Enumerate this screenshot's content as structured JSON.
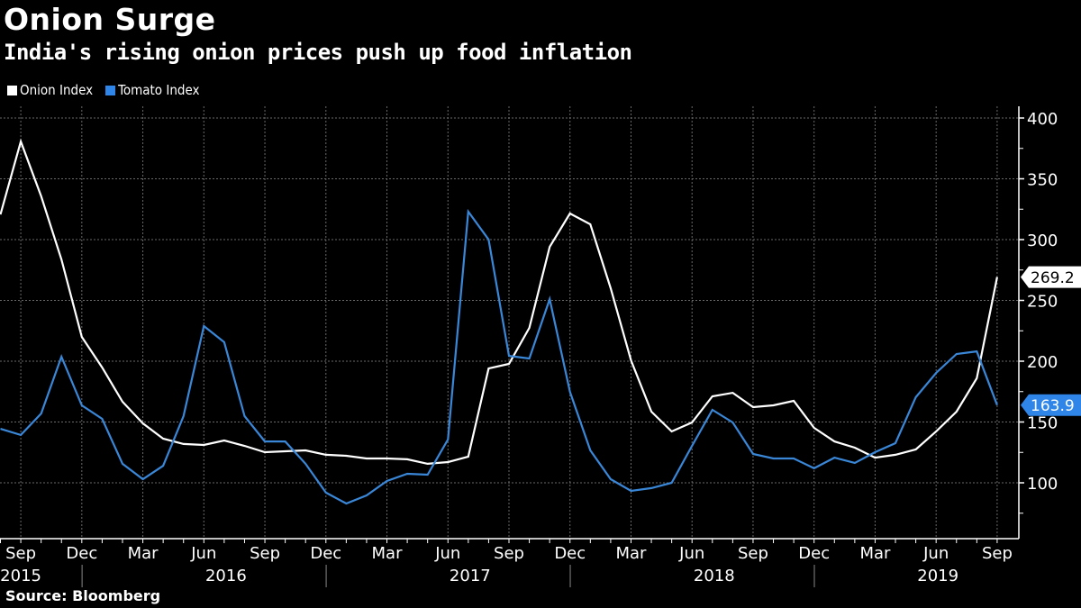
{
  "header": {
    "title": "Onion Surge",
    "subtitle": "India's rising onion prices push up food inflation"
  },
  "footer": {
    "source": "Source: Bloomberg"
  },
  "colors": {
    "background": "#000000",
    "onion": "#ffffff",
    "tomato": "#3a87d8",
    "grid": "#6a6a6a"
  },
  "chart_data": {
    "type": "line",
    "title": "Onion Surge",
    "subtitle": "India's rising onion prices push up food inflation",
    "xlabel": "",
    "ylabel": "",
    "ylim": [
      50,
      410
    ],
    "grid": true,
    "legend": "top-left",
    "y_ticks": [
      100,
      150,
      200,
      250,
      300,
      350,
      400
    ],
    "x": [
      "2015-08",
      "2015-09",
      "2015-10",
      "2015-11",
      "2015-12",
      "2016-01",
      "2016-02",
      "2016-03",
      "2016-04",
      "2016-05",
      "2016-06",
      "2016-07",
      "2016-08",
      "2016-09",
      "2016-10",
      "2016-11",
      "2016-12",
      "2017-01",
      "2017-02",
      "2017-03",
      "2017-04",
      "2017-05",
      "2017-06",
      "2017-07",
      "2017-08",
      "2017-09",
      "2017-10",
      "2017-11",
      "2017-12",
      "2018-01",
      "2018-02",
      "2018-03",
      "2018-04",
      "2018-05",
      "2018-06",
      "2018-07",
      "2018-08",
      "2018-09",
      "2018-10",
      "2018-11",
      "2018-12",
      "2019-01",
      "2019-02",
      "2019-03",
      "2019-04",
      "2019-05",
      "2019-06",
      "2019-07",
      "2019-08",
      "2019-09"
    ],
    "x_ticks": [
      {
        "label": "Sep",
        "index": 1
      },
      {
        "label": "Dec",
        "index": 4
      },
      {
        "label": "Mar",
        "index": 7
      },
      {
        "label": "Jun",
        "index": 10
      },
      {
        "label": "Sep",
        "index": 13
      },
      {
        "label": "Dec",
        "index": 16
      },
      {
        "label": "Mar",
        "index": 19
      },
      {
        "label": "Jun",
        "index": 22
      },
      {
        "label": "Sep",
        "index": 25
      },
      {
        "label": "Dec",
        "index": 28
      },
      {
        "label": "Mar",
        "index": 31
      },
      {
        "label": "Jun",
        "index": 34
      },
      {
        "label": "Sep",
        "index": 37
      },
      {
        "label": "Dec",
        "index": 40
      },
      {
        "label": "Mar",
        "index": 43
      },
      {
        "label": "Jun",
        "index": 46
      },
      {
        "label": "Sep",
        "index": 49
      }
    ],
    "year_labels": [
      {
        "label": "2015",
        "center_index": 1
      },
      {
        "label": "2016",
        "center_index": 11
      },
      {
        "label": "2017",
        "center_index": 23
      },
      {
        "label": "2018",
        "center_index": 35
      },
      {
        "label": "2019",
        "center_index": 46
      }
    ],
    "year_separators": [
      4.5,
      16.5,
      28.5,
      40.5
    ],
    "series": [
      {
        "name": "Onion Index",
        "color": "#ffffff",
        "last_label": "269.2",
        "values": [
          320.7,
          380.7,
          335.6,
          283.7,
          220.0,
          194.8,
          166.7,
          148.9,
          136.3,
          131.9,
          131.1,
          134.8,
          130.4,
          125.2,
          125.9,
          126.7,
          123.0,
          122.2,
          120.0,
          120.0,
          119.3,
          115.6,
          117.0,
          121.5,
          194.0,
          197.8,
          227.4,
          294.0,
          321.5,
          312.6,
          260.0,
          200.7,
          158.5,
          142.2,
          149.6,
          171.1,
          174.0,
          162.2,
          163.7,
          167.4,
          145.2,
          134.0,
          128.9,
          120.7,
          123.0,
          127.4,
          142.2,
          158.5,
          185.9,
          269.2
        ]
      },
      {
        "name": "Tomato Index",
        "color": "#3a87d8",
        "last_label": "163.9",
        "values": [
          144.4,
          139.3,
          157.0,
          203.7,
          163.7,
          152.6,
          115.6,
          103.0,
          114.0,
          154.8,
          228.9,
          215.6,
          154.8,
          134.0,
          134.0,
          115.6,
          91.9,
          83.0,
          89.6,
          101.5,
          107.4,
          106.7,
          135.6,
          323.0,
          300.0,
          204.4,
          202.2,
          251.0,
          174.8,
          126.7,
          103.0,
          93.3,
          95.6,
          100.0,
          130.4,
          160.0,
          149.6,
          123.7,
          120.0,
          120.0,
          111.9,
          120.7,
          116.3,
          125.2,
          132.6,
          170.4,
          190.4,
          205.9,
          208.1,
          163.9
        ]
      }
    ]
  }
}
